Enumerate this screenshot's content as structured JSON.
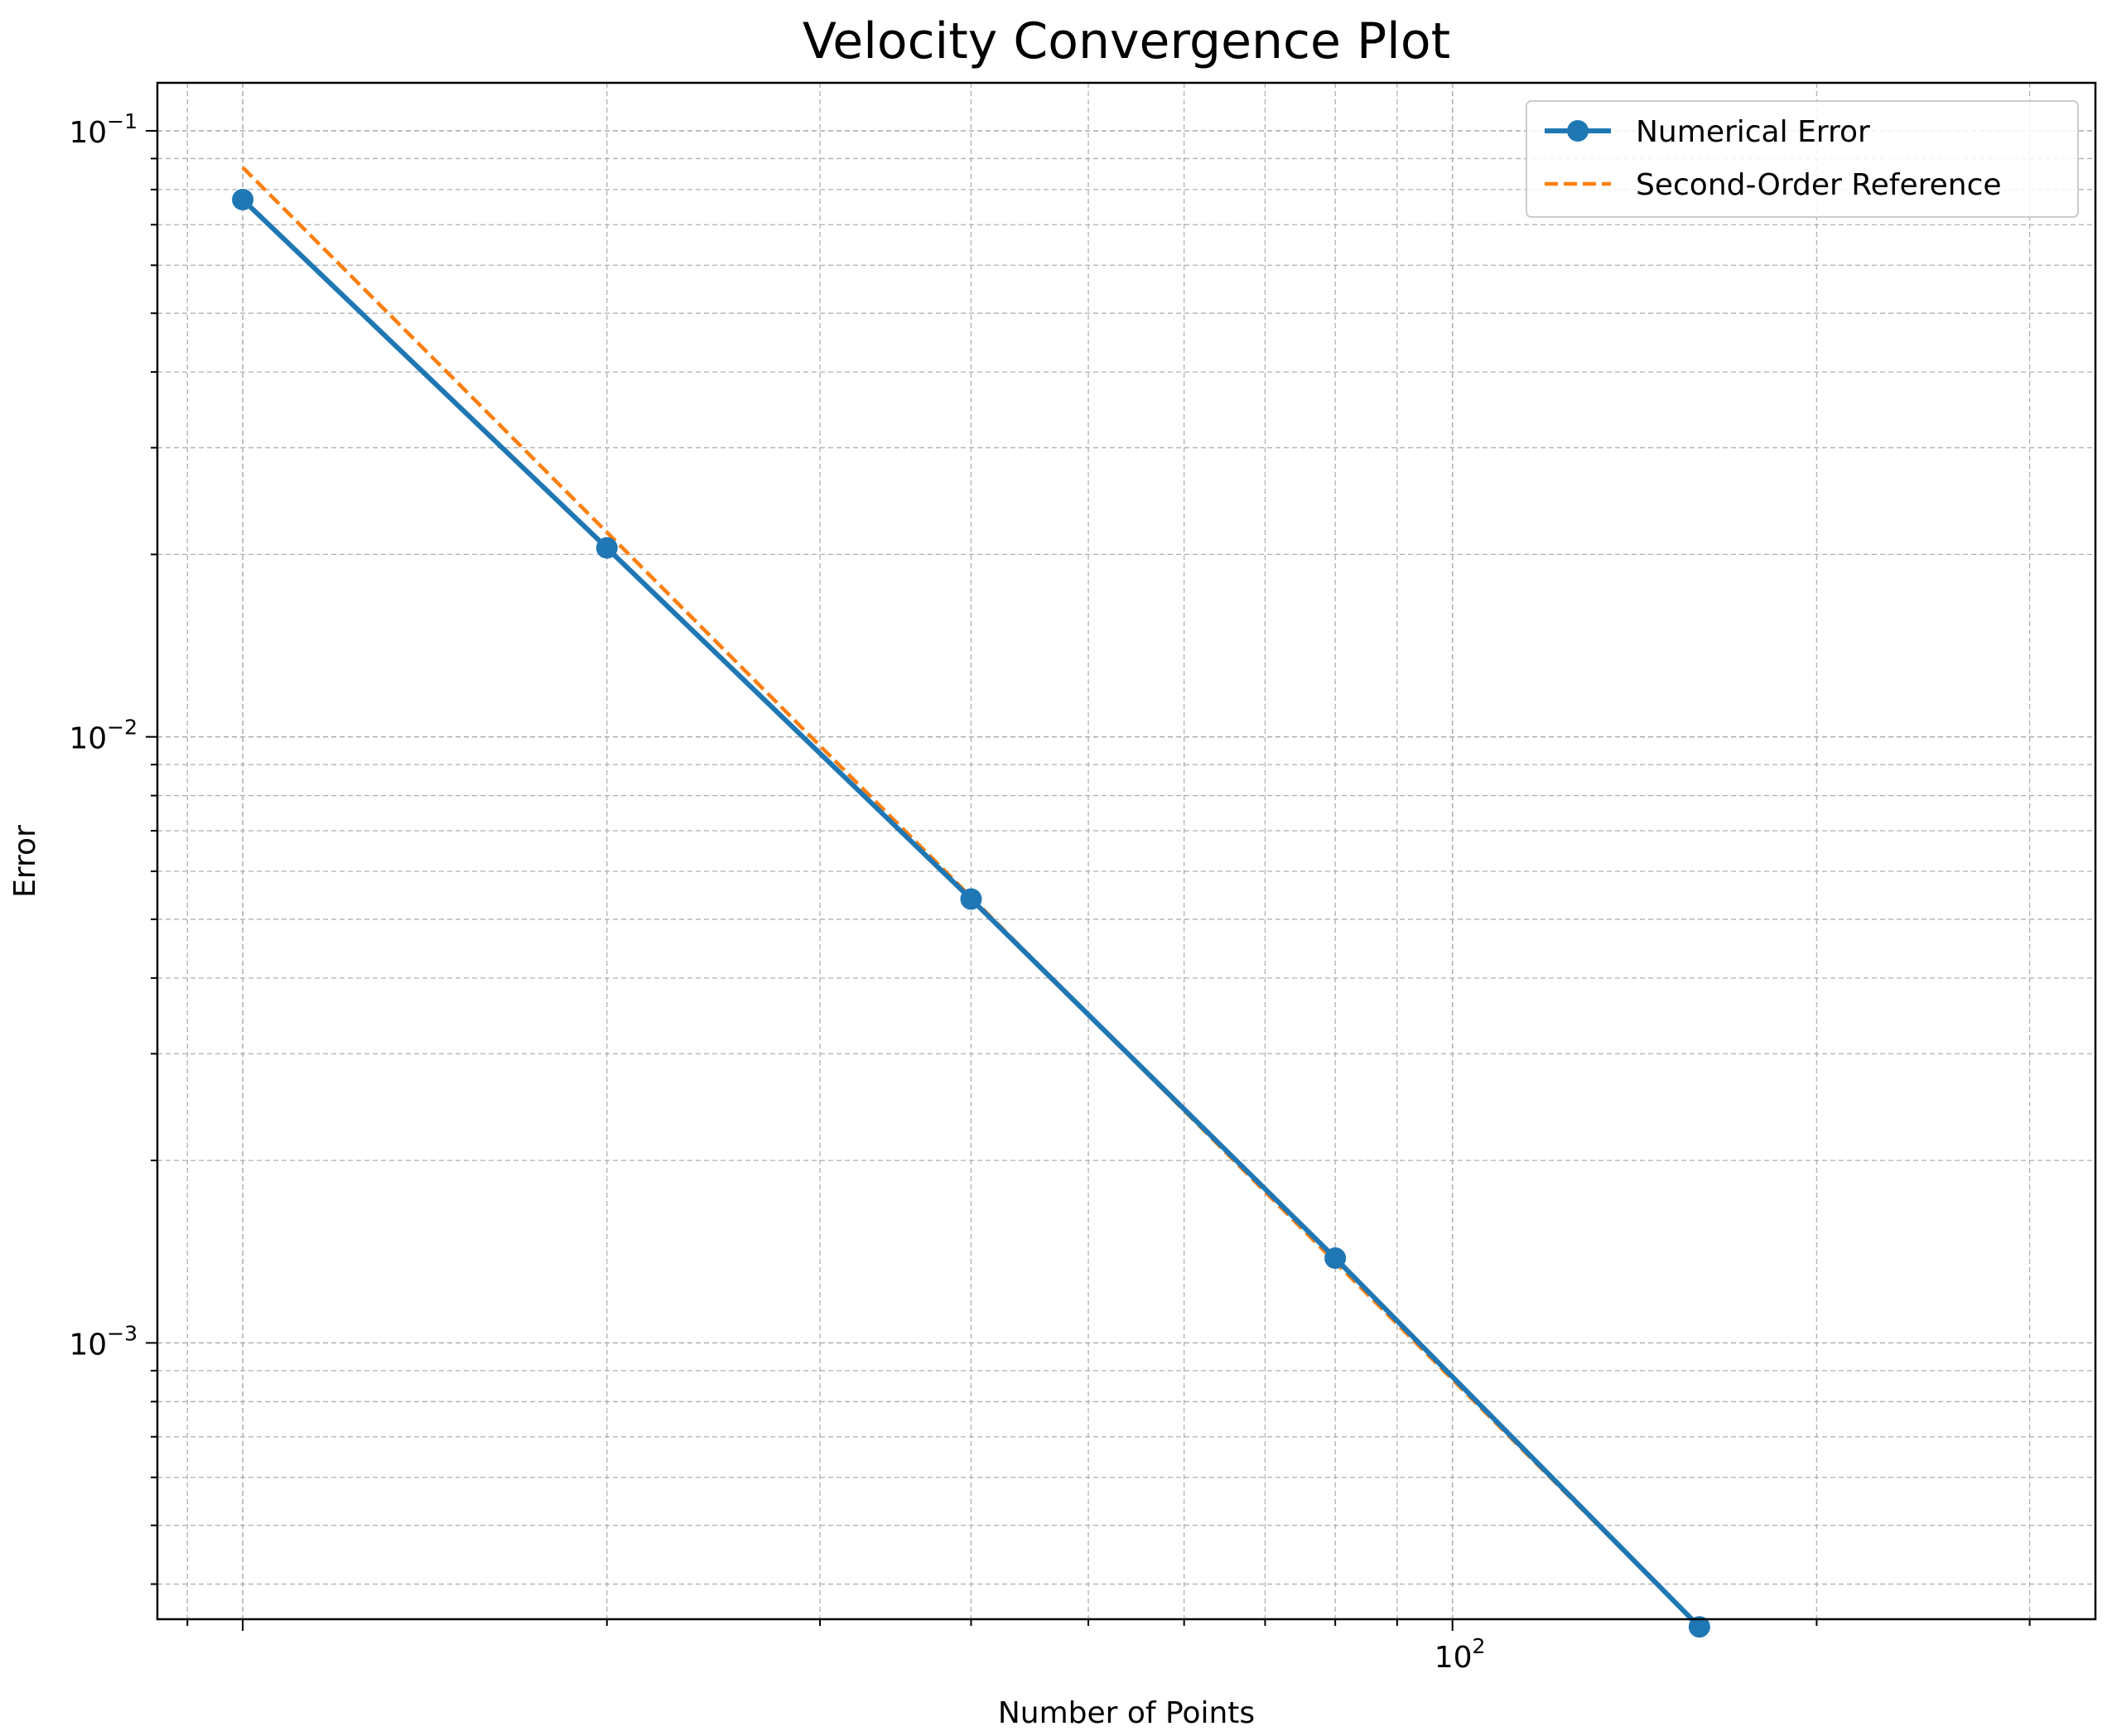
{
  "chart_data": {
    "type": "line",
    "title": "Velocity Convergence Plot",
    "xlabel": "Number of Points",
    "ylabel": "Error",
    "xscale": "log",
    "yscale": "log",
    "xlim": [
      8.5,
      340
    ],
    "ylim": [
      0.00035,
      0.12
    ],
    "grid": true,
    "grid_which": "both",
    "legend_position": "top-right",
    "x_tick_labels": [
      {
        "value": 100,
        "base": "10",
        "exp": "2"
      }
    ],
    "y_tick_labels": [
      {
        "value": 0.1,
        "base": "10",
        "exp": "−1"
      },
      {
        "value": 0.01,
        "base": "10",
        "exp": "−2"
      },
      {
        "value": 0.001,
        "base": "10",
        "exp": "−3"
      }
    ],
    "series": [
      {
        "name": "Numerical Error",
        "style": "solid",
        "marker": "circle",
        "color": "#1f77b4",
        "x": [
          10,
          20,
          40,
          80,
          160
        ],
        "y": [
          0.077,
          0.0205,
          0.0054,
          0.00138,
          0.00034
        ]
      },
      {
        "name": "Second-Order Reference",
        "style": "dashed",
        "marker": "none",
        "color": "#ff7f0e",
        "x": [
          10,
          160
        ],
        "y": [
          0.087,
          0.00034
        ]
      }
    ]
  }
}
